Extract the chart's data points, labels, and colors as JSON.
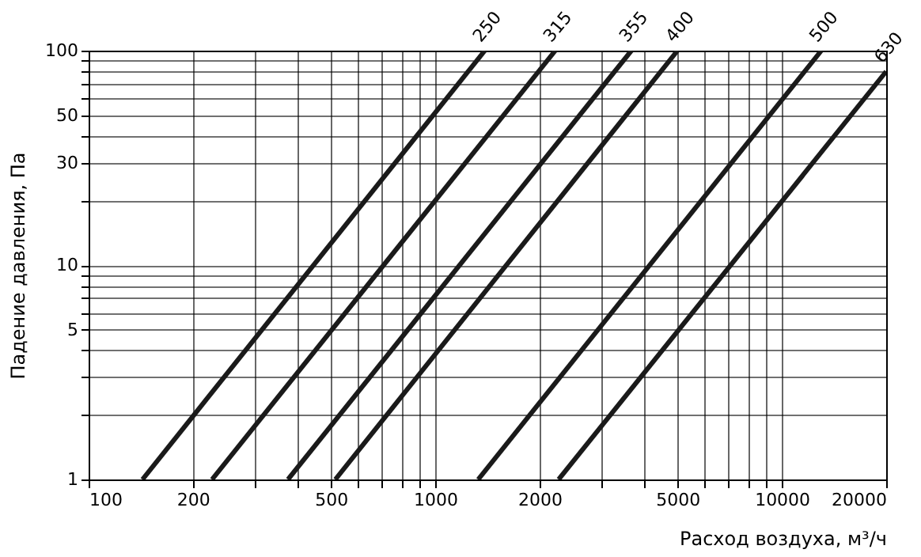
{
  "chart_data": {
    "type": "line",
    "xlabel": "Расход воздуха, м³/ч",
    "ylabel": "Падение давления, Па",
    "log": "xy",
    "grid": true,
    "line_style": "solid",
    "marker": "none",
    "xlim": [
      100,
      20000
    ],
    "ylim": [
      1,
      100
    ],
    "xticks": [
      100,
      200,
      {
        "value": 300,
        "label": null
      },
      {
        "value": 400,
        "label": null
      },
      500,
      {
        "value": 600,
        "label": null
      },
      {
        "value": 700,
        "label": null
      },
      {
        "value": 800,
        "label": null
      },
      {
        "value": 900,
        "label": null
      },
      1000,
      2000,
      {
        "value": 3000,
        "label": null
      },
      {
        "value": 4000,
        "label": null
      },
      5000,
      {
        "value": 6000,
        "label": null
      },
      {
        "value": 7000,
        "label": null
      },
      {
        "value": 8000,
        "label": null
      },
      {
        "value": 9000,
        "label": null
      },
      10000,
      20000
    ],
    "yticks": [
      1,
      {
        "value": 2,
        "label": null
      },
      {
        "value": 3,
        "label": null
      },
      {
        "value": 4,
        "label": null
      },
      5,
      {
        "value": 6,
        "label": null
      },
      {
        "value": 7,
        "label": null
      },
      {
        "value": 8,
        "label": null
      },
      {
        "value": 9,
        "label": null
      },
      10,
      {
        "value": 20,
        "label": null
      },
      30,
      {
        "value": 40,
        "label": null
      },
      50,
      {
        "value": 60,
        "label": null
      },
      {
        "value": 70,
        "label": null
      },
      {
        "value": 80,
        "label": null
      },
      {
        "value": 90,
        "label": null
      },
      100
    ],
    "series": [
      {
        "name": "250",
        "color": "#1a1a1a",
        "x": [
          143,
          1390
        ],
        "values": [
          1,
          100
        ]
      },
      {
        "name": "315",
        "color": "#1a1a1a",
        "x": [
          227,
          2220
        ],
        "values": [
          1,
          100
        ]
      },
      {
        "name": "355",
        "color": "#1a1a1a",
        "x": [
          376,
          3680
        ],
        "values": [
          1,
          100
        ]
      },
      {
        "name": "400",
        "color": "#1a1a1a",
        "x": [
          515,
          5000
        ],
        "values": [
          1,
          100
        ]
      },
      {
        "name": "500",
        "color": "#1a1a1a",
        "x": [
          1330,
          13000
        ],
        "values": [
          1,
          100
        ]
      },
      {
        "name": "630",
        "color": "#1a1a1a",
        "x": [
          2270,
          20000
        ],
        "values": [
          1,
          80
        ]
      }
    ]
  }
}
